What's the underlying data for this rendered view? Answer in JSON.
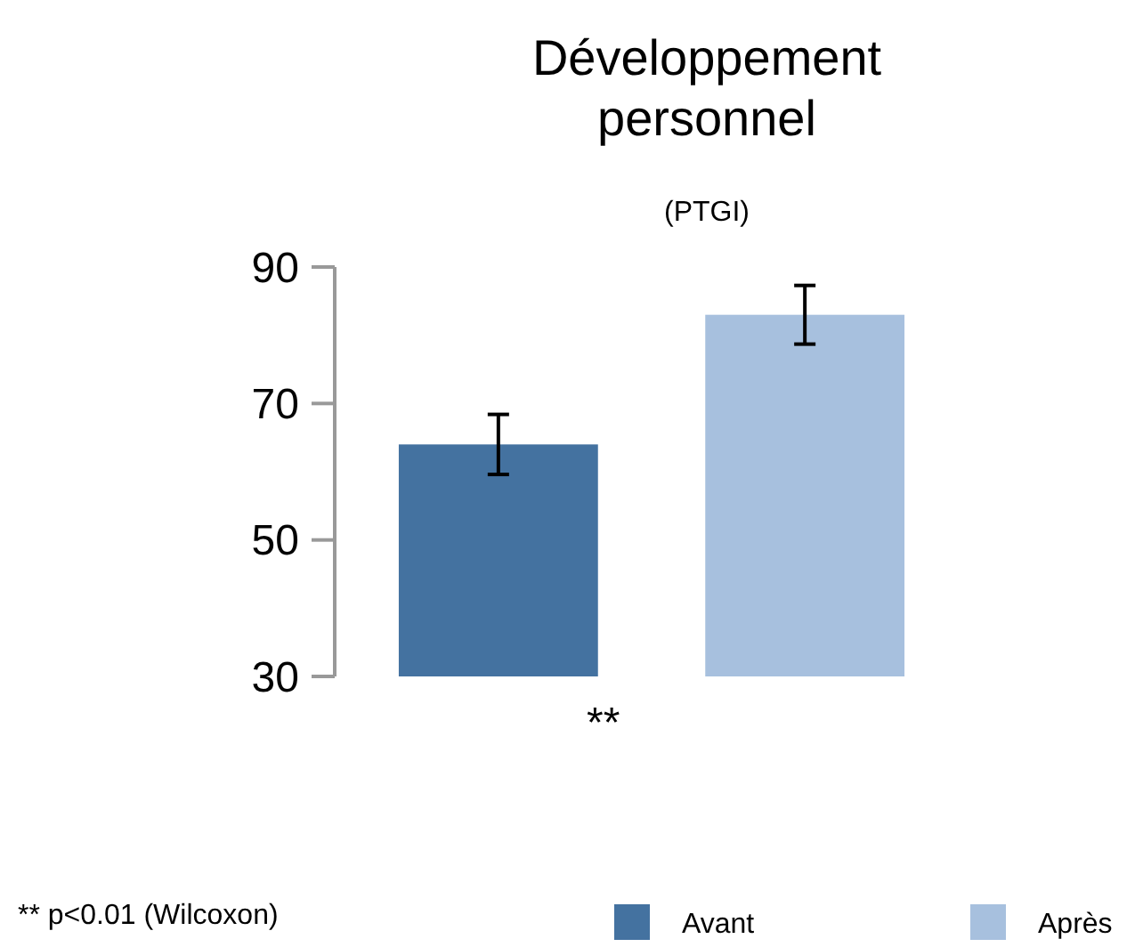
{
  "chart_data": {
    "type": "bar",
    "title": "Développement personnel",
    "subtitle": "(PTGI)",
    "categories": [
      null
    ],
    "series": [
      {
        "name": "Avant",
        "color": "#4472a0",
        "values": [
          64
        ],
        "errors": [
          4.4
        ]
      },
      {
        "name": "Après",
        "color": "#a7c0de",
        "values": [
          83
        ],
        "errors": [
          4.3
        ]
      }
    ],
    "ylim": [
      30,
      90
    ],
    "yticks": [
      30,
      50,
      70,
      90
    ],
    "grid": false,
    "legend": "bottom",
    "tick_labels": "y",
    "annotations": [
      "**",
      "** p<0.01 (Wilcoxon)"
    ]
  }
}
